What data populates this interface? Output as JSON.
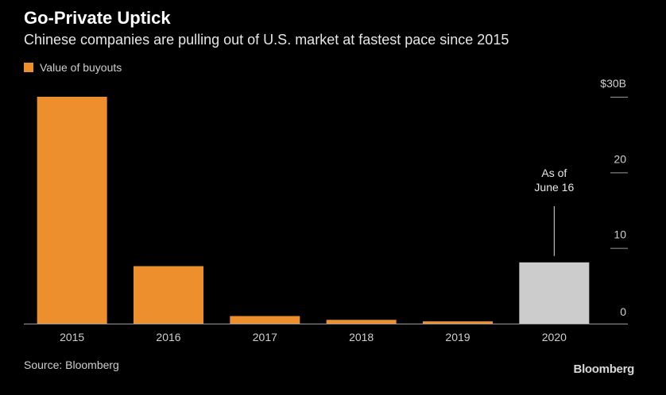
{
  "title": "Go-Private Uptick",
  "subtitle": "Chinese companies are pulling out of U.S. market at fastest pace since 2015",
  "legend": {
    "label": "Value of buyouts",
    "color": "#ec8f2c"
  },
  "source": "Source: Bloomberg",
  "brand": "Bloomberg",
  "colors": {
    "bar": "#ec8f2c",
    "highlight": "#cccccc",
    "axis": "#9a9a9a",
    "tick_label": "#d0d0d0"
  },
  "chart_data": {
    "type": "bar",
    "categories": [
      "2015",
      "2016",
      "2017",
      "2018",
      "2019",
      "2020"
    ],
    "values": [
      30,
      7.6,
      1,
      0.5,
      0.3,
      8.1
    ],
    "highlight_index": 5,
    "ylim": [
      0,
      30
    ],
    "yticks": [
      0,
      10,
      20,
      30
    ],
    "ytick_labels": [
      "0",
      "10",
      "20",
      "$30B"
    ],
    "annotation": {
      "text_lines": [
        "As of",
        "June 16"
      ],
      "category": "2020"
    },
    "grid": false,
    "legend_position": "top-left"
  }
}
